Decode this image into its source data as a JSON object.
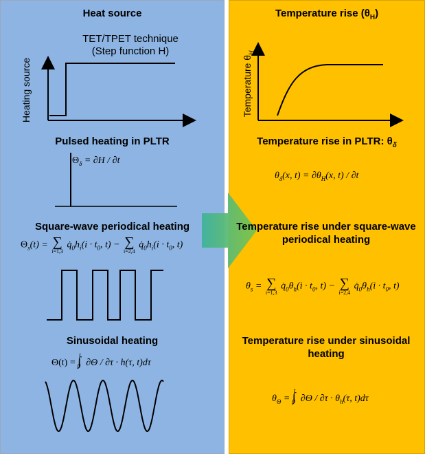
{
  "left": {
    "heat_source_title": "Heat source",
    "tet_title": "TET/TPET technique",
    "tet_subtitle": "(Step function H)",
    "heating_source_label": "Heating source",
    "pulsed_title": "Pulsed heating in PLTR",
    "pulsed_eq": {
      "lhs": "Θ",
      "lhs_sub": "δ",
      "rhs": "= ∂H / ∂t"
    },
    "square_title": "Square-wave periodical heating",
    "square_eq": {
      "lhs": "Θ",
      "lhs_sub": "s",
      "arg": "(t) =",
      "lim1": "i=1,3",
      "lim2": "i=2,4",
      "term1": "h",
      "term_sub": "i",
      "term_arg": "(i · t",
      "t0_sub": "0",
      "term_end": ", t) −"
    },
    "sinus_title": "Sinusoidal heating",
    "sinus_eq": {
      "lhs": "Θ(t) =",
      "int_upper": "t",
      "int_lower": "0",
      "body": "∂Θ / ∂τ · h(τ, t)dτ"
    }
  },
  "right": {
    "temp_rise_title": "Temperature rise (θ",
    "temp_rise_sub": "H",
    "temp_rise_close": ")",
    "temperature_label": "Temperature θ",
    "temperature_label_sub": "H",
    "pltr_title": "Temperature rise in PLTR: θ",
    "pltr_title_sub": "δ",
    "pltr_eq": "θ_δ(x, t) = ∂θ_H(x, t) / ∂t",
    "square_title": "Temperature rise under square-wave periodical heating",
    "square_eq": {
      "lhs": "θ",
      "lhs_sub": "s",
      "lim1": "i=1,3",
      "lim2": "i=2,4",
      "term": "θ",
      "term_sub": "h",
      "arg": "(i · t",
      "t0_sub": "0",
      "end": ", t)"
    },
    "sinus_title": "Temperature rise under sinusoidal heating",
    "sinus_eq": {
      "lhs": "θ",
      "lhs_sub": "Θ",
      "int_upper": "t",
      "int_lower": "0",
      "body": "∂Θ / ∂τ · θ",
      "body_sub": "h",
      "body_end": "(τ, t)dτ"
    }
  },
  "colors": {
    "left_bg": "#8db4e2",
    "right_bg": "#ffc000",
    "arrow": "#4fb98c"
  }
}
